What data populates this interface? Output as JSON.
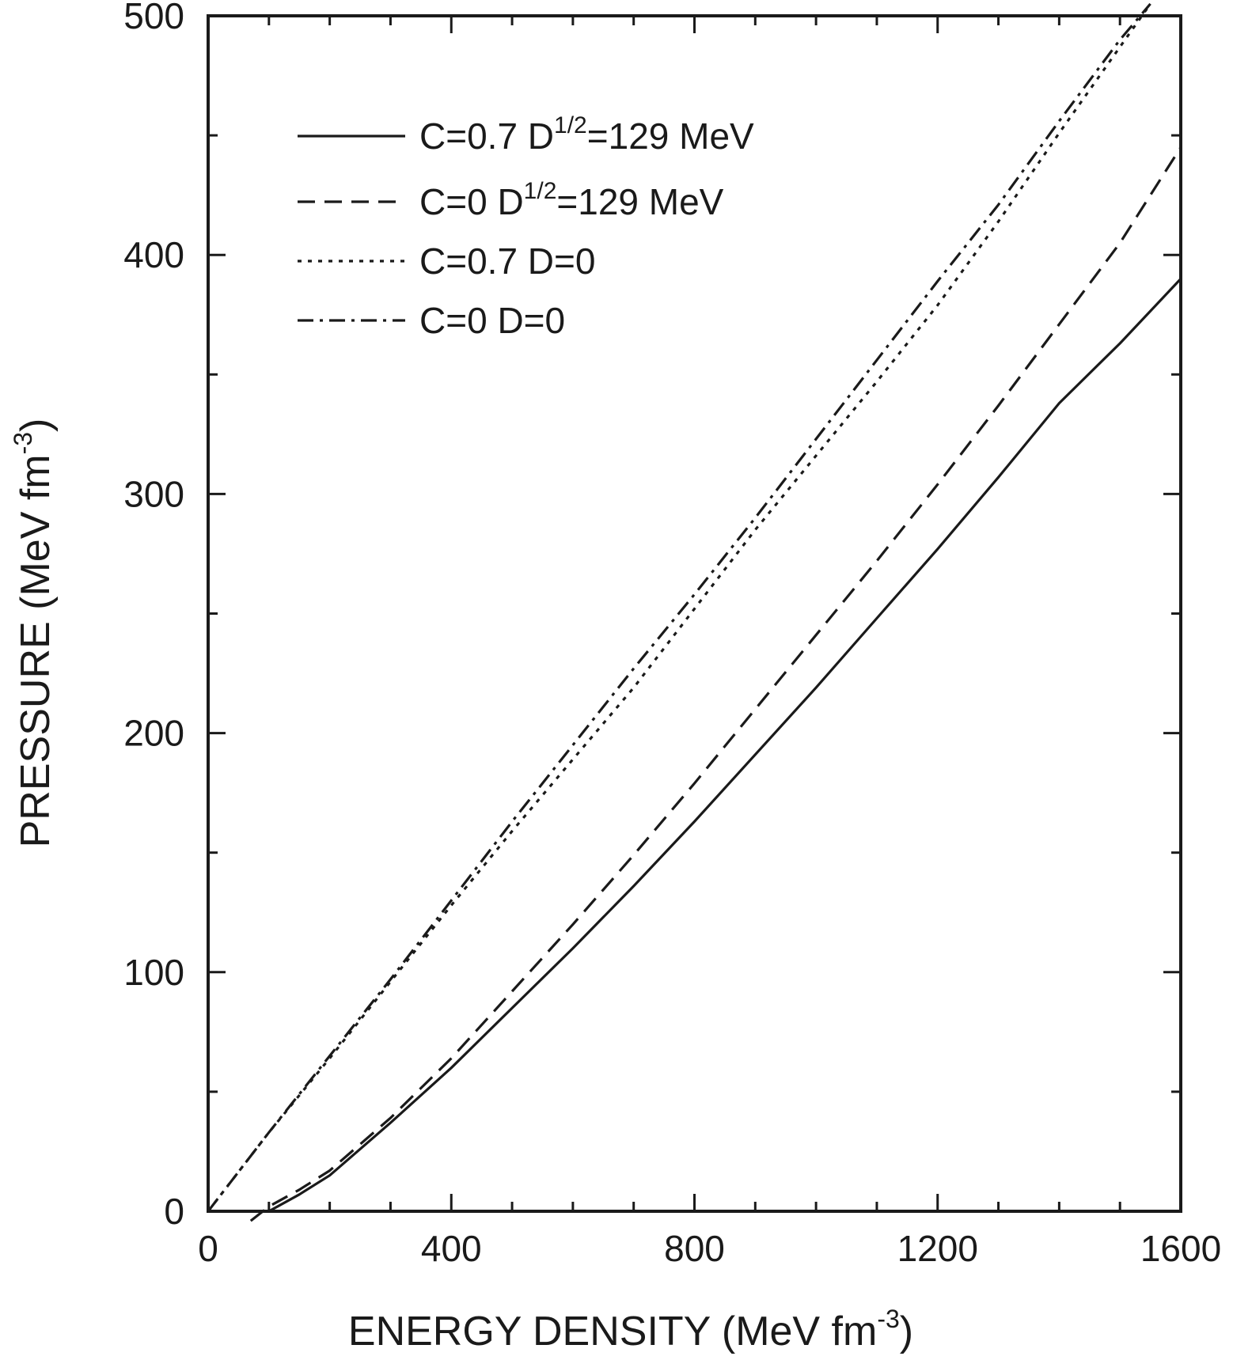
{
  "chart_data": {
    "type": "line",
    "title": "",
    "xlabel": "ENERGY DENSITY (MeV fm",
    "xlabel_sup": "-3",
    "xlabel_end": ")",
    "ylabel": "PRESSURE (MeV fm",
    "ylabel_sup": "-3",
    "ylabel_end": ")",
    "xlim": [
      0,
      1600
    ],
    "ylim": [
      0,
      500
    ],
    "xticks": [
      0,
      400,
      800,
      1200,
      1600
    ],
    "xticks_minor": [
      100,
      200,
      300,
      500,
      600,
      700,
      900,
      1000,
      1100,
      1300,
      1400,
      1500
    ],
    "yticks": [
      0,
      100,
      200,
      300,
      400,
      500
    ],
    "yticks_minor": [
      50,
      150,
      250,
      350,
      450
    ],
    "grid": false,
    "legend_position": "top-left",
    "series": [
      {
        "legend_parts": [
          "C=0.7 D",
          "1/2",
          "=129 MeV"
        ],
        "style": "solid",
        "x": [
          100,
          150,
          200,
          300,
          400,
          500,
          600,
          700,
          800,
          900,
          1000,
          1100,
          1200,
          1300,
          1400,
          1500,
          1600
        ],
        "y": [
          0,
          7,
          15,
          37,
          60,
          85,
          110,
          136,
          163,
          191,
          219,
          248,
          277,
          307,
          338,
          363,
          390
        ]
      },
      {
        "legend_parts": [
          "C=0 D",
          "1/2",
          "=129 MeV"
        ],
        "style": "dashed",
        "x": [
          70,
          100,
          150,
          200,
          300,
          400,
          500,
          600,
          700,
          800,
          900,
          1000,
          1100,
          1200,
          1300,
          1400,
          1500,
          1600
        ],
        "y": [
          -4,
          2,
          9,
          17,
          39,
          64,
          92,
          120,
          149,
          179,
          210,
          241,
          272,
          304,
          337,
          371,
          405,
          445
        ]
      },
      {
        "legend_parts": [
          "C=0.7 D=0"
        ],
        "style": "dotted",
        "x": [
          0,
          100,
          200,
          300,
          400,
          500,
          600,
          700,
          800,
          900,
          1000,
          1100,
          1200,
          1300,
          1400,
          1500,
          1550
        ],
        "y": [
          0,
          33,
          64,
          96,
          128,
          159,
          189,
          219,
          252,
          285,
          316,
          347,
          379,
          414,
          451,
          487,
          505
        ]
      },
      {
        "legend_parts": [
          "C=0 D=0"
        ],
        "style": "dashdot",
        "x": [
          0,
          100,
          200,
          300,
          400,
          500,
          600,
          700,
          800,
          900,
          1000,
          1100,
          1200,
          1300,
          1400,
          1500,
          1550
        ],
        "y": [
          0,
          33,
          65,
          97,
          130,
          163,
          195,
          227,
          258,
          290,
          323,
          356,
          389,
          421,
          456,
          490,
          505
        ]
      }
    ]
  }
}
